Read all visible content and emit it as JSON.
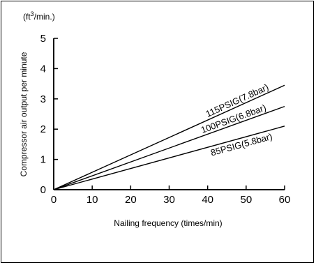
{
  "chart_data": {
    "type": "line",
    "unit_label": "(ft³/min.)",
    "xlabel": "Nailing frequency (times/min)",
    "ylabel": "Compressor air output per minute",
    "xlim": [
      0,
      60
    ],
    "ylim": [
      0,
      5
    ],
    "x_ticks": [
      "0",
      "10",
      "20",
      "30",
      "40",
      "50",
      "60"
    ],
    "y_ticks": [
      "0",
      "1",
      "2",
      "3",
      "4",
      "5"
    ],
    "grid": false,
    "series": [
      {
        "name": "115PSIG(7.8bar)",
        "x": [
          0,
          60
        ],
        "y": [
          0,
          3.45
        ]
      },
      {
        "name": "100PSIG(6.8bar)",
        "x": [
          0,
          60
        ],
        "y": [
          0,
          2.75
        ]
      },
      {
        "name": "85PSIG(5.8bar)",
        "x": [
          0,
          60
        ],
        "y": [
          0,
          2.1
        ]
      }
    ],
    "line_color": "#000000"
  }
}
